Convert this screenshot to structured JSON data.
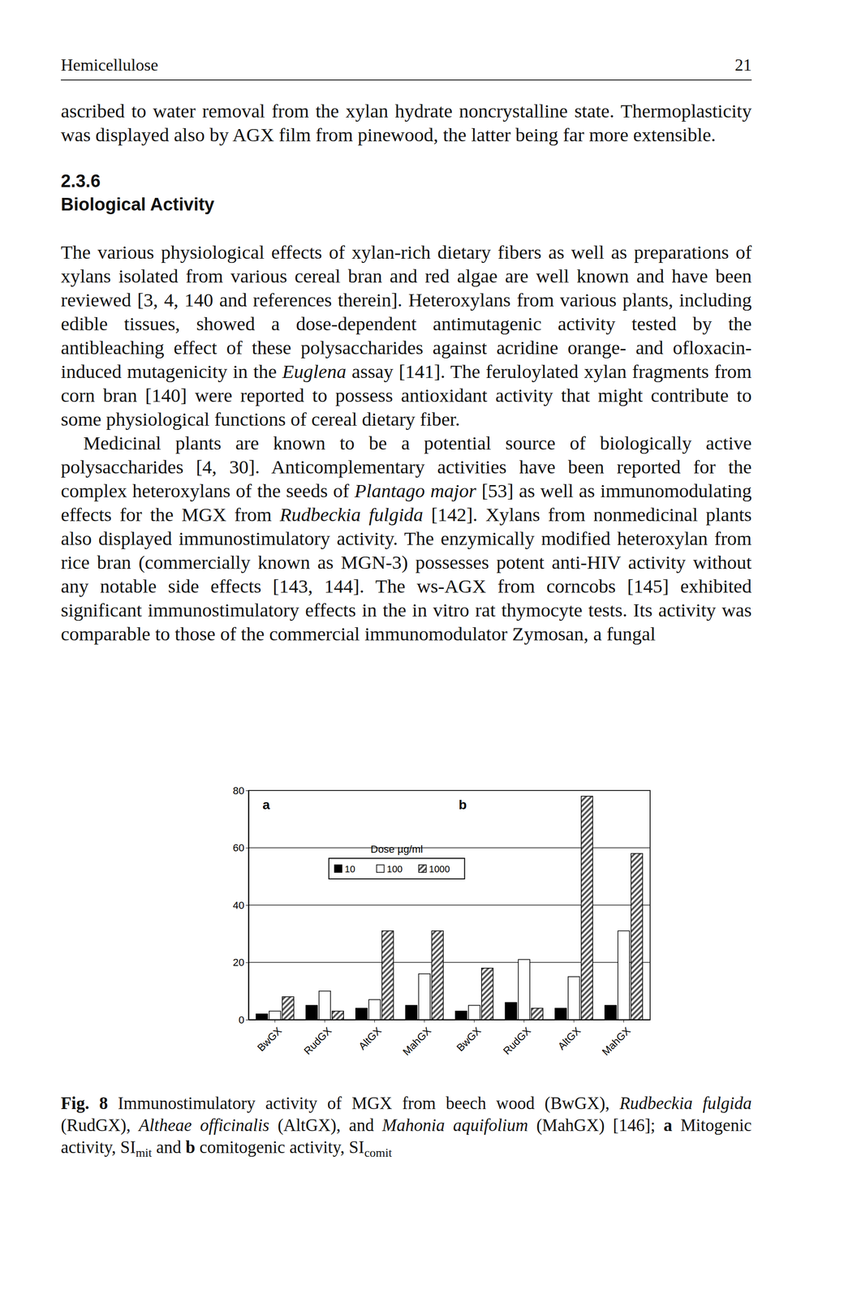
{
  "header": {
    "title": "Hemicellulose",
    "page": "21"
  },
  "paragraphs_before": [
    {
      "runs": [
        {
          "text": "ascribed to water removal from the xylan hydrate noncrystalline state. Thermoplasticity was displayed also by AGX film from pinewood, the latter being far more extensible."
        }
      ]
    }
  ],
  "section": {
    "number": "2.3.6",
    "title": "Biological Activity"
  },
  "paragraphs": [
    {
      "runs": [
        {
          "text": "The various physiological effects of xylan-rich dietary fibers as well as preparations of xylans isolated from various cereal bran and red algae are well known and have been reviewed [3, 4, 140 and references therein]. Heteroxylans from various plants, including edible tissues, showed a dose-dependent antimutagenic activity tested by the antibleaching effect of these polysaccharides against acridine orange- and ofloxacin-induced mutagenicity in the "
        },
        {
          "text": "Euglena",
          "style": "italic"
        },
        {
          "text": " assay [141]. The feruloylated xylan fragments from corn bran [140] were reported to possess antioxidant activity that might contribute to some physiological functions of cereal dietary fiber."
        }
      ]
    },
    {
      "runs": [
        {
          "text": "Medicinal plants are known to be a potential source of biologically active polysaccharides [4, 30]. Anticomplementary activities have been reported for the complex heteroxylans of the seeds of "
        },
        {
          "text": "Plantago major",
          "style": "italic"
        },
        {
          "text": " [53] as well as immunomodulating effects for the MGX from "
        },
        {
          "text": "Rudbeckia fulgida",
          "style": "italic"
        },
        {
          "text": " [142]. Xylans from nonmedicinal plants also displayed immunostimulatory activity. The enzymically modified heteroxylan from rice bran (commercially known as MGN-3) possesses potent anti-HIV activity without any notable side effects [143, 144]. The ws-AGX from corncobs [145] exhibited significant immunostimulatory effects in the in vitro rat thymocyte tests. Its activity was comparable to those of the commercial immunomodulator Zymosan, a fungal"
        }
      ]
    }
  ],
  "chart_data": {
    "type": "bar",
    "categories": [
      "BwGX",
      "RudGX",
      "AltGX",
      "MahGX",
      "BwGX",
      "RudGX",
      "AltGX",
      "MahGX"
    ],
    "series": [
      {
        "name": "10",
        "color": "#000000",
        "values": [
          2,
          5,
          4,
          5,
          3,
          6,
          4,
          5
        ]
      },
      {
        "name": "100",
        "color": "#ffffff",
        "values": [
          3,
          10,
          7,
          16,
          5,
          21,
          15,
          31
        ]
      },
      {
        "name": "1000",
        "color": "#555555",
        "values": [
          8,
          3,
          31,
          31,
          18,
          4,
          78,
          58
        ]
      }
    ],
    "annotations": [
      "a",
      "b",
      "Dose µg/ml"
    ],
    "ylim": [
      0,
      80
    ],
    "yticks": [
      0,
      20,
      40,
      60,
      80
    ],
    "grid": true,
    "legend": "top"
  },
  "caption": {
    "runs": [
      {
        "text": "Fig. 8",
        "style": "bold"
      },
      {
        "text": " Immunostimulatory activity of MGX from beech wood (BwGX), "
      },
      {
        "text": "Rudbeckia fulgida",
        "style": "italic"
      },
      {
        "text": " (RudGX), "
      },
      {
        "text": "Altheae officinalis",
        "style": "italic"
      },
      {
        "text": " (AltGX), and "
      },
      {
        "text": "Mahonia aquifolium",
        "style": "italic"
      },
      {
        "text": " (MahGX) [146]; "
      },
      {
        "text": "a",
        "style": "bold"
      },
      {
        "text": " Mitogenic activity, SI"
      },
      {
        "text": "mit",
        "style": "sub"
      },
      {
        "text": " and "
      },
      {
        "text": "b",
        "style": "bold"
      },
      {
        "text": " comitogenic activity, SI"
      },
      {
        "text": "comit",
        "style": "sub"
      }
    ]
  }
}
